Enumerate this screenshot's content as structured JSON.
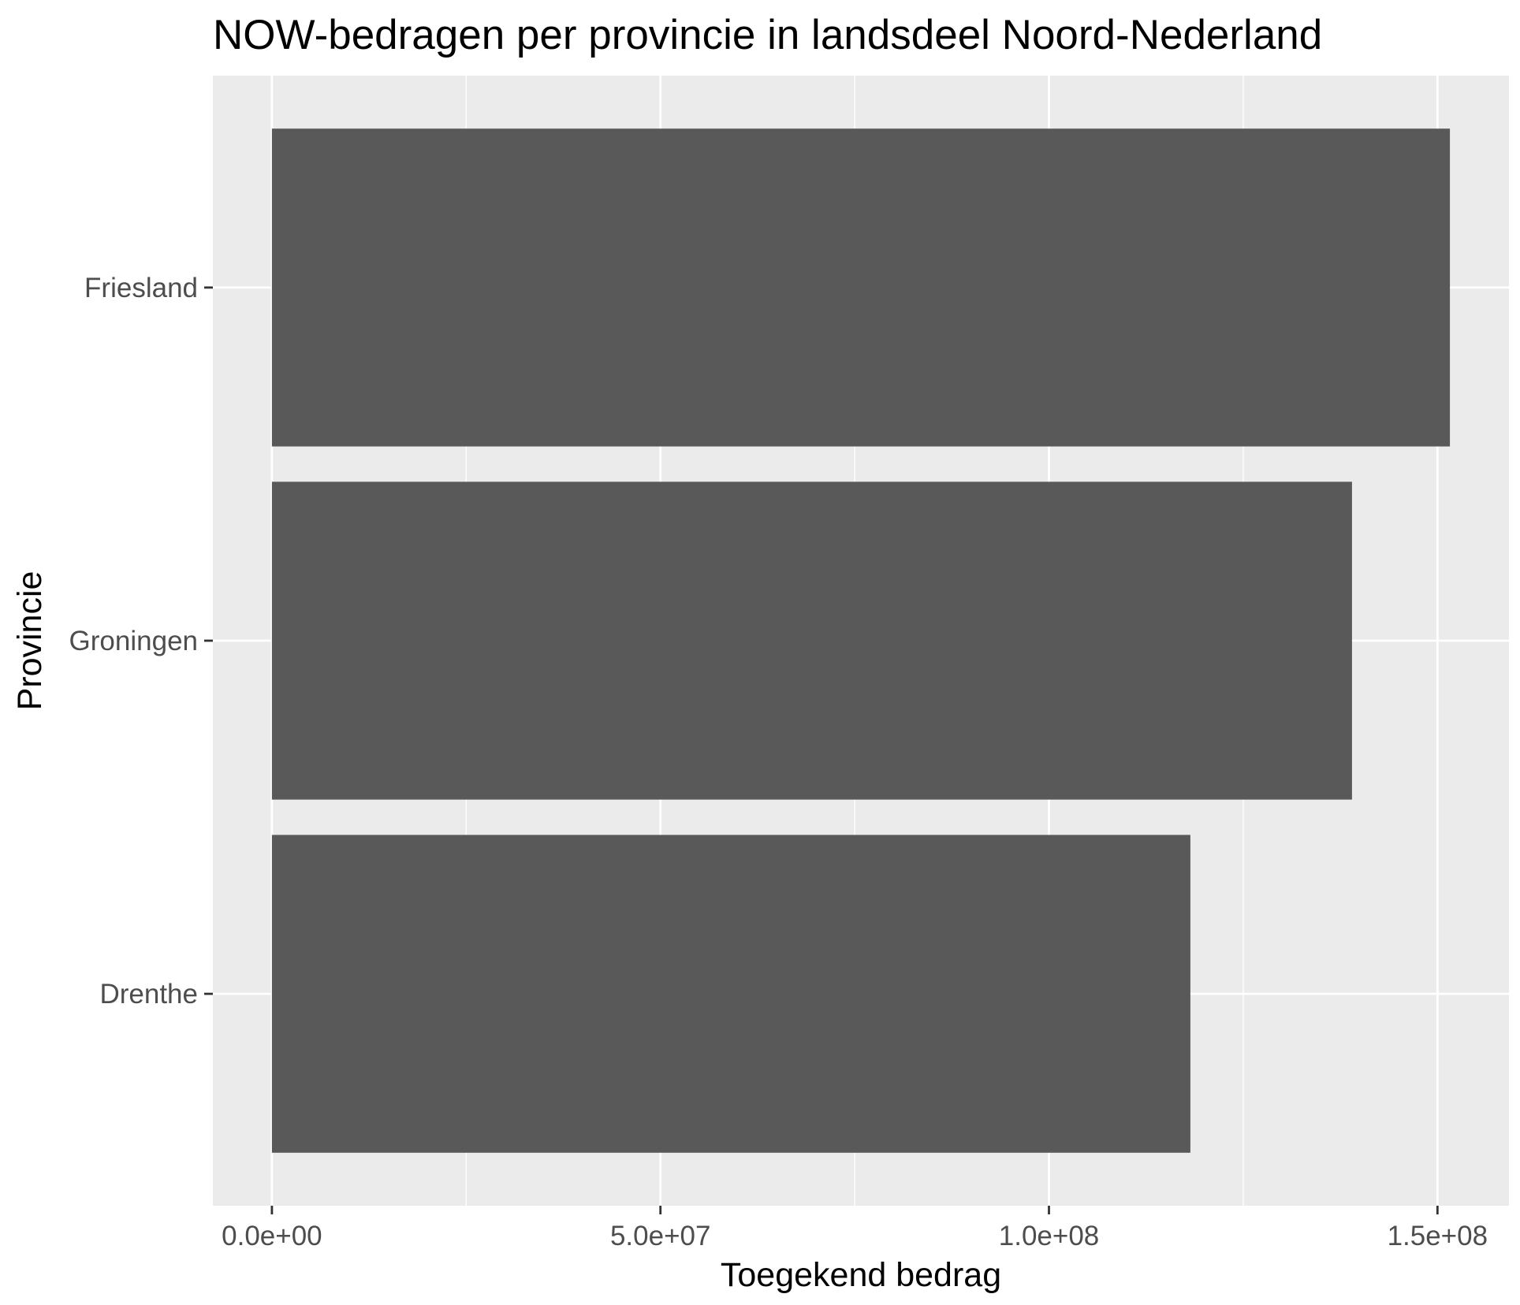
{
  "chart_data": {
    "type": "bar",
    "orientation": "horizontal",
    "title": "NOW-bedragen per provincie in landsdeel Noord-Nederland",
    "xlabel": "Toegekend bedrag",
    "ylabel": "Provincie",
    "categories": [
      "Friesland",
      "Groningen",
      "Drenthe"
    ],
    "values": [
      151600000,
      139000000,
      118200000
    ],
    "xlim": [
      -7600000,
      159200000
    ],
    "x_ticks": [
      0,
      50000000,
      100000000,
      150000000
    ],
    "x_tick_labels": [
      "0.0e+00",
      "5.0e+07",
      "1.0e+08",
      "1.5e+08"
    ],
    "grid": true,
    "legend": "none",
    "colors": {
      "bar": "#595959",
      "panel": "#ebebeb",
      "grid": "#ffffff"
    }
  }
}
